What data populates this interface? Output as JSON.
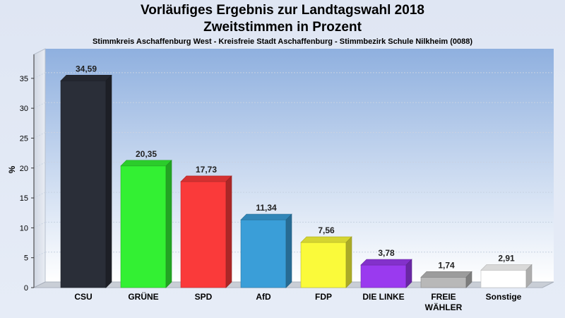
{
  "title": "Vorläufiges Ergebnis zur Landtagswahl 2018",
  "subtitle": "Zweitstimmen in Prozent",
  "caption": "Stimmkreis Aschaffenburg West - Kreisfreie Stadt Aschaffenburg - Stimmbezirk Schule Nilkheim (0088)",
  "chart_data": {
    "type": "bar",
    "title": "Vorläufiges Ergebnis zur Landtagswahl 2018",
    "subtitle": "Zweitstimmen in Prozent",
    "ylabel": "%",
    "xlabel": "",
    "ylim": [
      0,
      39
    ],
    "yticks": [
      0,
      5,
      10,
      15,
      20,
      25,
      30,
      35
    ],
    "grid": true,
    "categories": [
      "CSU",
      "GRÜNE",
      "SPD",
      "AfD",
      "FDP",
      "DIE LINKE",
      "FREIE WÄHLER",
      "Sonstige"
    ],
    "category_lines": [
      [
        "CSU"
      ],
      [
        "GRÜNE"
      ],
      [
        "SPD"
      ],
      [
        "AfD"
      ],
      [
        "FDP"
      ],
      [
        "DIE LINKE"
      ],
      [
        "FREIE",
        "WÄHLER"
      ],
      [
        "Sonstige"
      ]
    ],
    "values": [
      34.59,
      20.35,
      17.73,
      11.34,
      7.56,
      3.78,
      1.74,
      2.91
    ],
    "value_labels": [
      "34,59",
      "20,35",
      "17,73",
      "11,34",
      "7,56",
      "3,78",
      "1,74",
      "2,91"
    ],
    "colors": [
      "#2a2e38",
      "#33f033",
      "#fa3a3a",
      "#3a9ed8",
      "#fafa3a",
      "#9a3aef",
      "#b8b8b8",
      "#ffffff"
    ]
  }
}
